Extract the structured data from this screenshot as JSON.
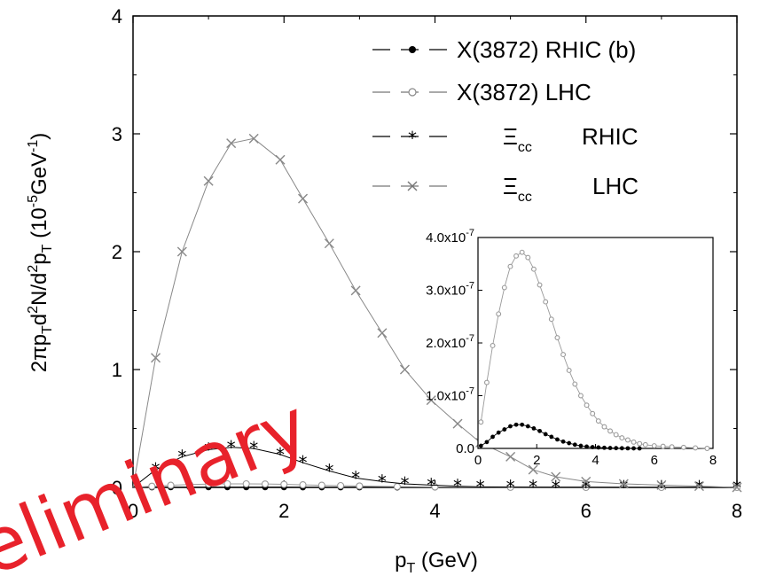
{
  "chart_data": [
    {
      "type": "line",
      "xlabel": "p",
      "xlabel_sub": "T",
      "xlabel_unit": " (GeV)",
      "ylabel": {
        "a": "2πp",
        "a_sub": "T",
        "b": "d",
        "b_sup": "2",
        "c": "N/d",
        "c_sup": "2",
        "d": "p",
        "d_sub": "T",
        "e": " (10",
        "e_sup": "-5",
        "f": "GeV",
        "f_sup": "-1",
        "g": ")"
      },
      "xlim": [
        0,
        8
      ],
      "ylim": [
        0,
        4
      ],
      "x_ticks": [
        "0",
        "2",
        "4",
        "6",
        "8"
      ],
      "y_ticks": [
        "0",
        "1",
        "2",
        "3",
        "4"
      ],
      "legend_position": "top-right",
      "series": [
        {
          "name": "X(3872) RHIC  (b)",
          "label_parts": {
            "main": "X(3872) RHIC  (b)"
          },
          "marker": "filled-circle",
          "color": "#000000",
          "x": [
            0.25,
            0.5,
            0.75,
            1.0,
            1.25,
            1.5,
            1.75,
            2.0,
            2.25,
            2.5,
            2.75,
            3.0,
            3.5,
            4.0,
            5.0,
            6.0,
            7.0,
            8.0
          ],
          "y": [
            0.001,
            0.002,
            0.002,
            0.002,
            0.002,
            0.002,
            0.002,
            0.002,
            0.001,
            0.001,
            0.001,
            0.001,
            0.0,
            0.0,
            0.0,
            0.0,
            0.0,
            0.0
          ]
        },
        {
          "name": "X(3872)  LHC",
          "label_parts": {
            "main": "X(3872)  LHC"
          },
          "marker": "open-circle",
          "color": "#9a9a9a",
          "x": [
            0.25,
            0.5,
            0.75,
            1.0,
            1.25,
            1.5,
            1.75,
            2.0,
            2.25,
            2.5,
            2.75,
            3.0,
            3.5,
            4.0,
            5.0,
            6.0,
            7.0,
            8.0
          ],
          "y": [
            0.01,
            0.018,
            0.024,
            0.028,
            0.03,
            0.03,
            0.029,
            0.026,
            0.022,
            0.018,
            0.015,
            0.012,
            0.007,
            0.004,
            0.001,
            0.0,
            0.0,
            0.0
          ]
        },
        {
          "name": "Ξcc RHIC",
          "label_parts": {
            "xi": "Ξ",
            "sub": "cc",
            "coll": "RHIC"
          },
          "marker": "asterisk",
          "color": "#000000",
          "x": [
            0.3,
            0.65,
            1.0,
            1.3,
            1.6,
            1.95,
            2.25,
            2.6,
            2.95,
            3.3,
            3.6,
            3.95,
            4.3,
            4.6,
            5.0,
            5.3,
            5.6,
            6.0,
            6.5,
            7.0,
            7.5,
            8.0
          ],
          "y": [
            0.15,
            0.26,
            0.32,
            0.34,
            0.33,
            0.28,
            0.21,
            0.14,
            0.08,
            0.05,
            0.03,
            0.02,
            0.01,
            0.005,
            0.003,
            0.002,
            0.001,
            0.001,
            0.0,
            0.0,
            0.0,
            0.0
          ]
        },
        {
          "name": "Ξcc LHC",
          "label_parts": {
            "xi": "Ξ",
            "sub": "cc",
            "coll": "LHC"
          },
          "marker": "cross",
          "color": "#888888",
          "x": [
            0.3,
            0.65,
            1.0,
            1.3,
            1.6,
            1.95,
            2.25,
            2.6,
            2.95,
            3.3,
            3.6,
            3.95,
            4.3,
            4.6,
            5.0,
            5.3,
            5.6,
            6.0,
            6.5,
            7.0,
            7.5,
            8.0
          ],
          "y": [
            1.1,
            2.0,
            2.6,
            2.92,
            2.96,
            2.78,
            2.45,
            2.07,
            1.67,
            1.31,
            1.0,
            0.74,
            0.54,
            0.38,
            0.26,
            0.15,
            0.09,
            0.05,
            0.03,
            0.02,
            0.01,
            0.0
          ]
        }
      ]
    },
    {
      "type": "line",
      "inset": true,
      "xlim": [
        0,
        8
      ],
      "ylim": [
        0,
        4.0
      ],
      "x_ticks": [
        "0",
        "2",
        "4",
        "6",
        "8"
      ],
      "y_ticks": [
        {
          "mant": "0.0",
          "exp": ""
        },
        {
          "mant": "1.0x10",
          "exp": "-7"
        },
        {
          "mant": "2.0x10",
          "exp": "-7"
        },
        {
          "mant": "3.0x10",
          "exp": "-7"
        },
        {
          "mant": "4.0x10",
          "exp": "-7"
        }
      ],
      "y_unit_multiplier": "1e-7",
      "series": [
        {
          "name": "X(3872) LHC",
          "marker": "open-circle",
          "color": "#9a9a9a",
          "x": [
            0.1,
            0.3,
            0.5,
            0.7,
            0.9,
            1.1,
            1.3,
            1.5,
            1.7,
            1.9,
            2.1,
            2.3,
            2.5,
            2.7,
            2.9,
            3.1,
            3.3,
            3.5,
            3.7,
            3.9,
            4.1,
            4.3,
            4.5,
            4.7,
            4.9,
            5.1,
            5.3,
            5.5,
            5.7,
            6.0,
            6.3,
            6.6,
            7.0,
            7.4,
            7.8
          ],
          "y": [
            0.5,
            1.25,
            1.95,
            2.55,
            3.05,
            3.45,
            3.65,
            3.72,
            3.62,
            3.4,
            3.1,
            2.78,
            2.45,
            2.1,
            1.78,
            1.48,
            1.22,
            1.0,
            0.82,
            0.66,
            0.52,
            0.41,
            0.33,
            0.26,
            0.2,
            0.16,
            0.12,
            0.09,
            0.07,
            0.05,
            0.04,
            0.03,
            0.02,
            0.01,
            0.0
          ]
        },
        {
          "name": "X(3872) RHIC",
          "marker": "filled-circle",
          "color": "#000000",
          "x": [
            0.1,
            0.3,
            0.5,
            0.7,
            0.9,
            1.1,
            1.3,
            1.5,
            1.7,
            1.9,
            2.1,
            2.3,
            2.5,
            2.7,
            2.9,
            3.1,
            3.3,
            3.5,
            3.7,
            3.9,
            4.1,
            4.3,
            4.5,
            4.7,
            4.9,
            5.1,
            5.3,
            5.5
          ],
          "y": [
            0.05,
            0.12,
            0.22,
            0.3,
            0.36,
            0.42,
            0.45,
            0.45,
            0.42,
            0.38,
            0.33,
            0.27,
            0.22,
            0.17,
            0.13,
            0.1,
            0.07,
            0.05,
            0.035,
            0.025,
            0.018,
            0.012,
            0.008,
            0.005,
            0.003,
            0.002,
            0.001,
            0.0
          ]
        }
      ]
    }
  ],
  "watermark": "eliminary"
}
